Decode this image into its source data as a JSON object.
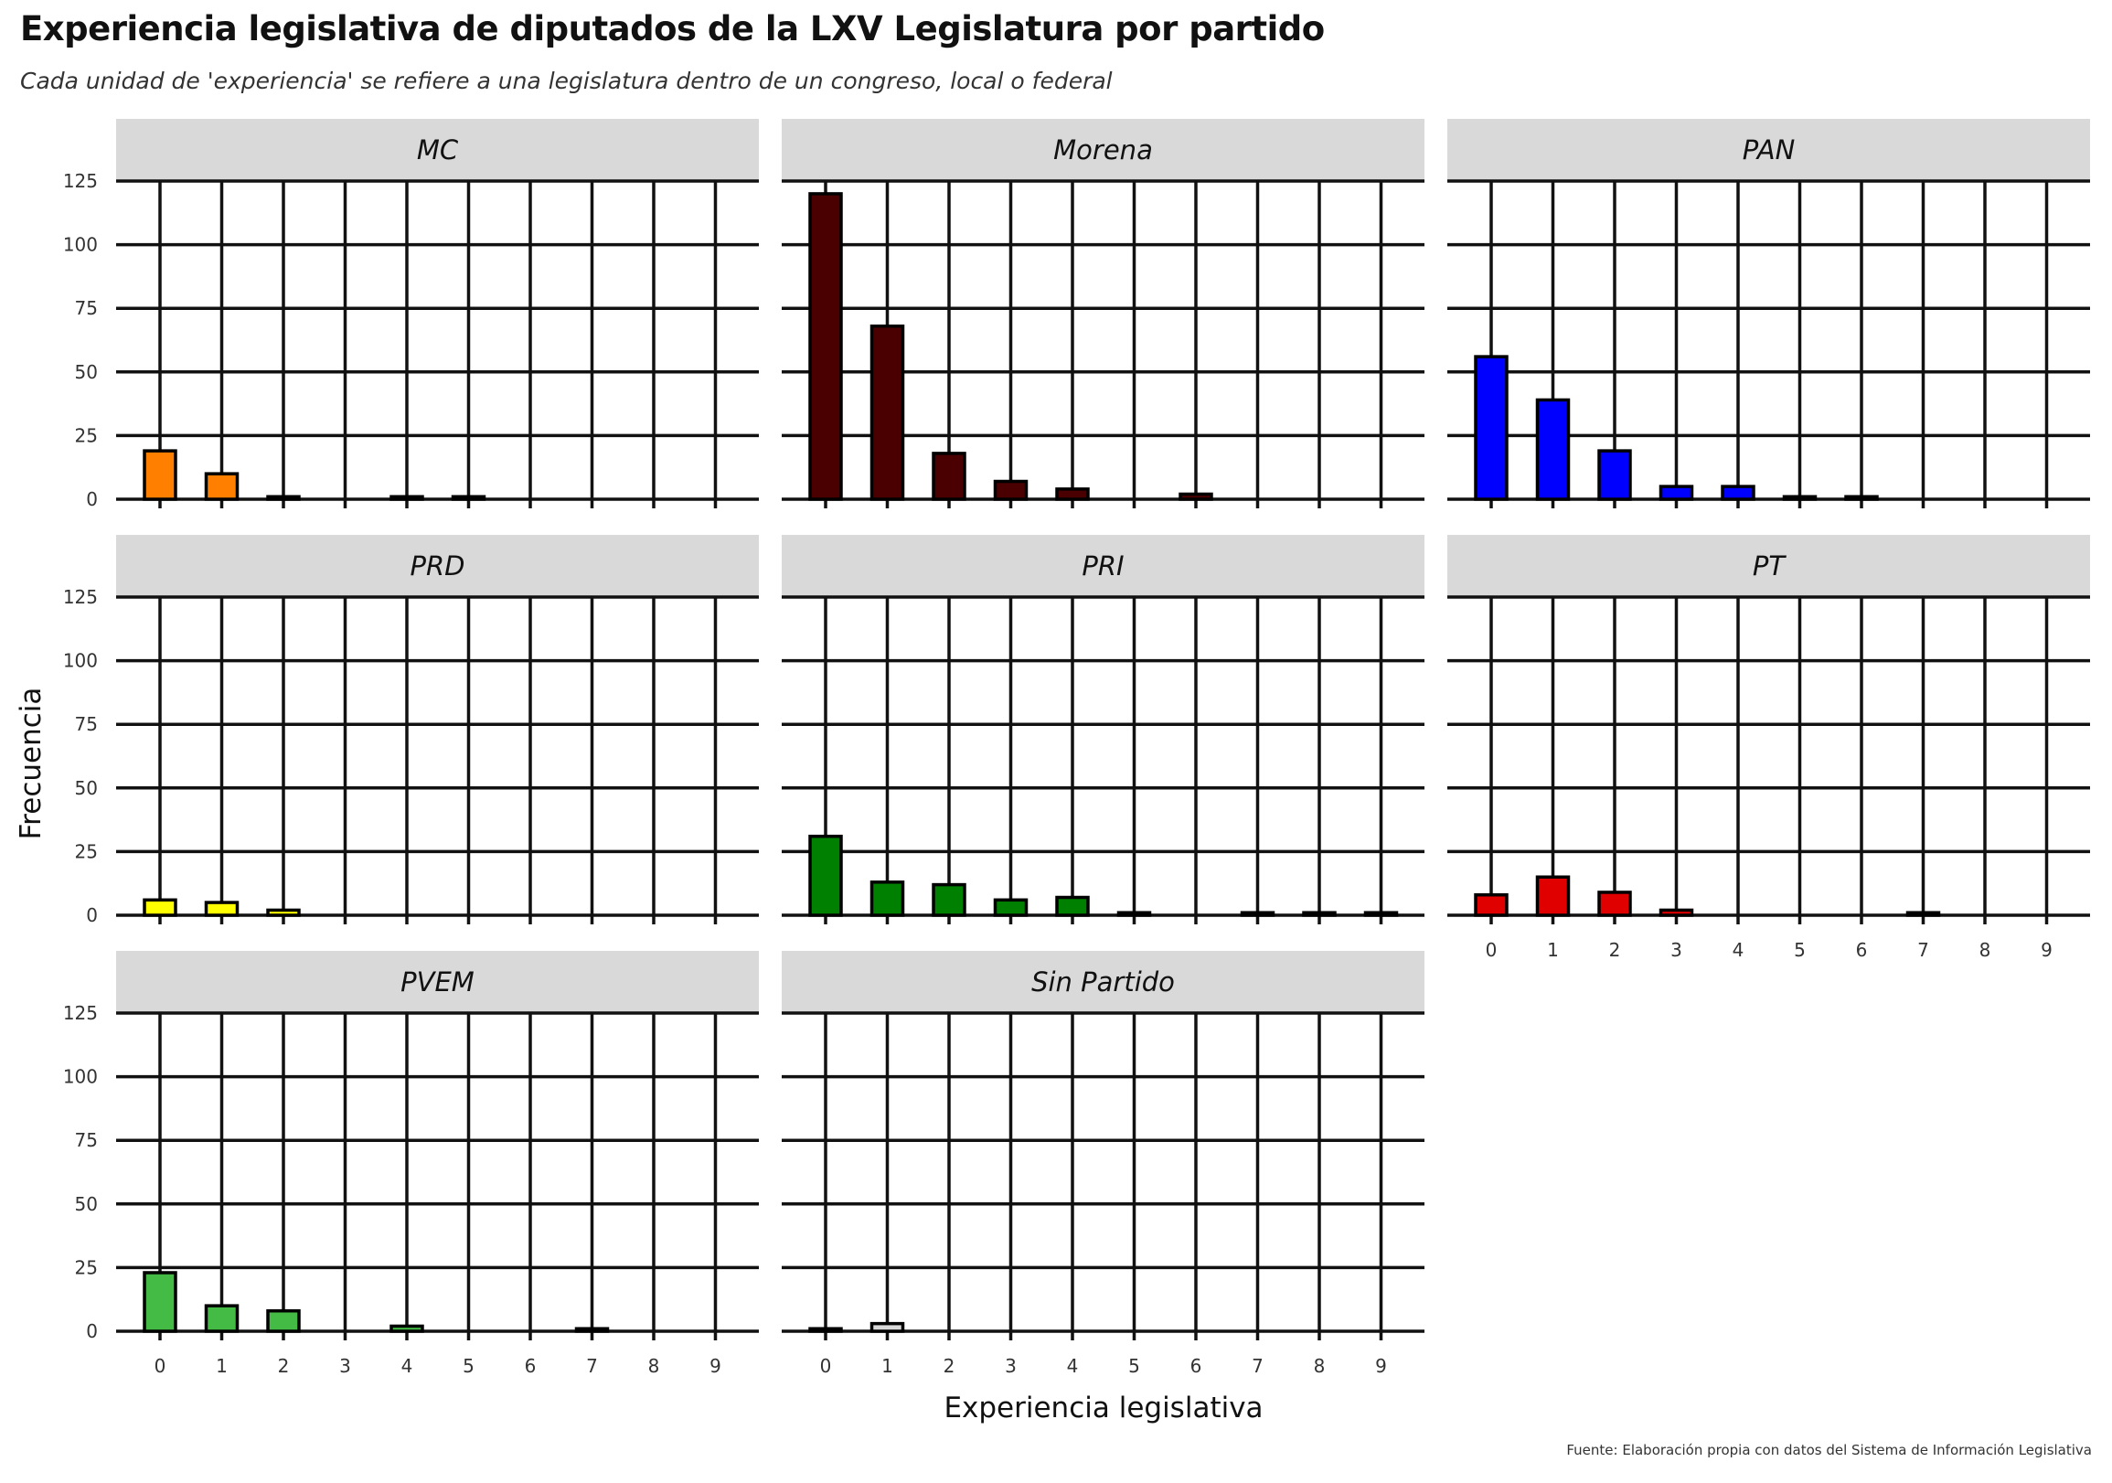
{
  "chart_data": {
    "type": "bar",
    "title": "Experiencia legislativa de diputados de la LXV Legislatura por partido",
    "subtitle": "Cada unidad de 'experiencia' se refiere a una legislatura dentro de un congreso, local o federal",
    "xlabel": "Experiencia legislativa",
    "ylabel": "Frecuencia",
    "caption": "Fuente: Elaboración propia con datos del Sistema de Información Legislativa",
    "categories": [
      "0",
      "1",
      "2",
      "3",
      "4",
      "5",
      "6",
      "7",
      "8",
      "9"
    ],
    "yticks": [
      "0",
      "25",
      "50",
      "75",
      "100",
      "125"
    ],
    "ylim": [
      0,
      125
    ],
    "grid": true,
    "facets": [
      {
        "name": "MC",
        "color": "#ff8000",
        "values": [
          19,
          10,
          1,
          0,
          1,
          1,
          0,
          0,
          0,
          0
        ]
      },
      {
        "name": "Morena",
        "color": "#4a0000",
        "values": [
          120,
          68,
          18,
          7,
          4,
          0,
          2,
          0,
          0,
          0
        ]
      },
      {
        "name": "PAN",
        "color": "#0000ff",
        "values": [
          56,
          39,
          19,
          5,
          5,
          1,
          1,
          0,
          0,
          0
        ]
      },
      {
        "name": "PRD",
        "color": "#ffff00",
        "values": [
          6,
          5,
          2,
          0,
          0,
          0,
          0,
          0,
          0,
          0
        ]
      },
      {
        "name": "PRI",
        "color": "#008000",
        "values": [
          31,
          13,
          12,
          6,
          7,
          1,
          0,
          1,
          1,
          1
        ]
      },
      {
        "name": "PT",
        "color": "#e00000",
        "values": [
          8,
          15,
          9,
          2,
          0,
          0,
          0,
          1,
          0,
          0
        ]
      },
      {
        "name": "PVEM",
        "color": "#44bb44",
        "values": [
          23,
          10,
          8,
          0,
          2,
          0,
          0,
          1,
          0,
          0
        ]
      },
      {
        "name": "Sin Partido",
        "color": "#d8d8d8",
        "values": [
          1,
          3,
          0,
          0,
          0,
          0,
          0,
          0,
          0,
          0
        ]
      }
    ]
  }
}
